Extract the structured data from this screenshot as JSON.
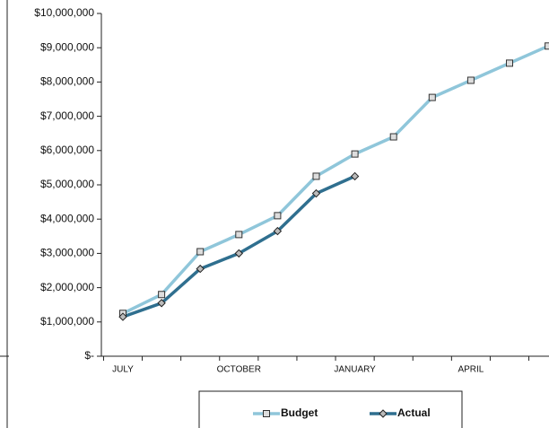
{
  "chart_data": {
    "type": "line",
    "categories": [
      "JULY",
      null,
      null,
      "OCTOBER",
      null,
      null,
      "JANUARY",
      null,
      null,
      "APRIL",
      null,
      null
    ],
    "series": [
      {
        "name": "Budget",
        "color": "#8fc6da",
        "marker": "square",
        "values": [
          1250000,
          1800000,
          3050000,
          3550000,
          4100000,
          5250000,
          5900000,
          6400000,
          7550000,
          8050000,
          8550000,
          9050000
        ]
      },
      {
        "name": "Actual",
        "color": "#2f6f8f",
        "marker": "diamond",
        "values": [
          1150000,
          1550000,
          2550000,
          3000000,
          3650000,
          4750000,
          5250000,
          null,
          null,
          null,
          null,
          null
        ]
      }
    ],
    "ylim": [
      0,
      10000000
    ],
    "yticks": [
      {
        "value": 0,
        "label": "$-"
      },
      {
        "value": 1000000,
        "label": "$1,000,000"
      },
      {
        "value": 2000000,
        "label": "$2,000,000"
      },
      {
        "value": 3000000,
        "label": "$3,000,000"
      },
      {
        "value": 4000000,
        "label": "$4,000,000"
      },
      {
        "value": 5000000,
        "label": "$5,000,000"
      },
      {
        "value": 6000000,
        "label": "$6,000,000"
      },
      {
        "value": 7000000,
        "label": "$7,000,000"
      },
      {
        "value": 8000000,
        "label": "$8,000,000"
      },
      {
        "value": 9000000,
        "label": "$9,000,000"
      },
      {
        "value": 10000000,
        "label": "$10,000,000"
      }
    ],
    "grid": false
  }
}
